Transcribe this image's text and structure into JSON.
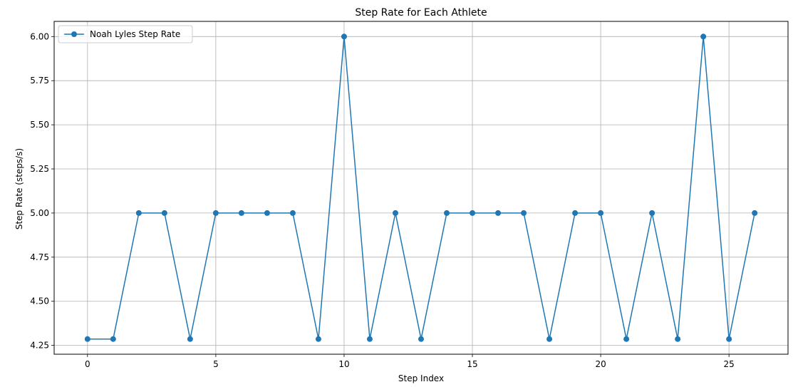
{
  "chart_data": {
    "type": "line",
    "title": "Step Rate for Each Athlete",
    "xlabel": "Step Index",
    "ylabel": "Step Rate (steps/s)",
    "xlim": [
      -1.3,
      27.3
    ],
    "ylim": [
      4.2,
      6.086
    ],
    "xticks": [
      0,
      5,
      10,
      15,
      20,
      25
    ],
    "xtick_labels": [
      "0",
      "5",
      "10",
      "15",
      "20",
      "25"
    ],
    "yticks": [
      4.25,
      4.5,
      4.75,
      5.0,
      5.25,
      5.5,
      5.75,
      6.0
    ],
    "ytick_labels": [
      "4.25",
      "4.50",
      "4.75",
      "5.00",
      "5.25",
      "5.50",
      "5.75",
      "6.00"
    ],
    "grid": true,
    "legend_position": "top-left",
    "series": [
      {
        "name": "Noah Lyles Step Rate",
        "color": "#1f77b4",
        "marker": "circle",
        "x": [
          0,
          1,
          2,
          3,
          4,
          5,
          6,
          7,
          8,
          9,
          10,
          11,
          12,
          13,
          14,
          15,
          16,
          17,
          18,
          19,
          20,
          21,
          22,
          23,
          24,
          25,
          26
        ],
        "values": [
          4.286,
          4.286,
          5.0,
          5.0,
          4.286,
          5.0,
          5.0,
          5.0,
          5.0,
          4.286,
          6.0,
          4.286,
          5.0,
          4.286,
          5.0,
          5.0,
          5.0,
          5.0,
          4.286,
          5.0,
          5.0,
          4.286,
          5.0,
          4.286,
          6.0,
          4.286,
          5.0
        ]
      }
    ]
  }
}
